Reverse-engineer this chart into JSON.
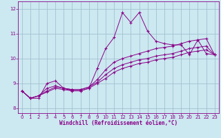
{
  "xlabel": "Windchill (Refroidissement éolien,°C)",
  "bg_color": "#cce8f0",
  "line_color": "#880088",
  "grid_color": "#99bbcc",
  "xlim": [
    -0.5,
    23.5
  ],
  "ylim": [
    7.8,
    12.3
  ],
  "xticks": [
    0,
    1,
    2,
    3,
    4,
    5,
    6,
    7,
    8,
    9,
    10,
    11,
    12,
    13,
    14,
    15,
    16,
    17,
    18,
    19,
    20,
    21,
    22,
    23
  ],
  "yticks": [
    8,
    9,
    10,
    11,
    12
  ],
  "line1_y": [
    8.7,
    8.4,
    8.4,
    9.0,
    9.1,
    8.8,
    8.7,
    8.7,
    8.8,
    9.6,
    10.4,
    10.85,
    11.85,
    11.45,
    11.85,
    11.1,
    10.7,
    10.6,
    10.55,
    10.55,
    10.15,
    10.75,
    10.2,
    10.15
  ],
  "line2_y": [
    8.7,
    8.4,
    8.5,
    8.8,
    8.9,
    8.8,
    8.75,
    8.75,
    8.85,
    9.15,
    9.55,
    9.85,
    10.0,
    10.1,
    10.2,
    10.3,
    10.4,
    10.45,
    10.5,
    10.6,
    10.7,
    10.75,
    10.8,
    10.15
  ],
  "line3_y": [
    8.7,
    8.4,
    8.5,
    8.7,
    8.85,
    8.8,
    8.75,
    8.75,
    8.85,
    9.05,
    9.35,
    9.6,
    9.75,
    9.85,
    9.95,
    10.0,
    10.1,
    10.15,
    10.2,
    10.3,
    10.4,
    10.45,
    10.5,
    10.15
  ],
  "line4_y": [
    8.7,
    8.4,
    8.5,
    8.65,
    8.8,
    8.75,
    8.7,
    8.7,
    8.8,
    9.0,
    9.2,
    9.45,
    9.6,
    9.7,
    9.8,
    9.85,
    9.95,
    10.0,
    10.05,
    10.15,
    10.25,
    10.3,
    10.35,
    10.15
  ]
}
